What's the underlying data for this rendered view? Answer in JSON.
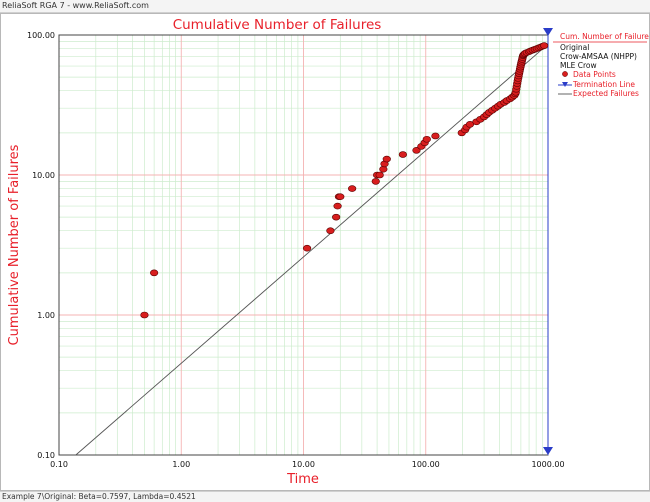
{
  "window": {
    "title": "ReliaSoft RGA 7 - www.ReliaSoft.com",
    "status": "Example 7\\Original: Beta=0.7597, Lambda=0.4521"
  },
  "colors": {
    "title": "#e8202a",
    "point": "#d81e1e",
    "point_edge": "#5a0000",
    "line": "#555555",
    "termination": "#2a3cc8",
    "major_grid": "#f4b3b3",
    "minor_grid": "#cdeccd"
  },
  "legend": {
    "header": "Cum. Number of Failures",
    "lines": [
      "Original",
      "Crow-AMSAA (NHPP)",
      "MLE Crow"
    ],
    "entries": [
      "Data Points",
      "Termination Line",
      "Expected Failures"
    ]
  },
  "chart_data": {
    "type": "scatter",
    "title": "Cumulative Number of Failures",
    "xlabel": "Time",
    "ylabel": "Cumulative Number of Failures",
    "xscale": "log",
    "yscale": "log",
    "xlim": [
      0.1,
      1000
    ],
    "ylim": [
      0.1,
      100
    ],
    "x_ticks": [
      "0.10",
      "1.00",
      "10.00",
      "100.00",
      "1000.00"
    ],
    "y_ticks": [
      "0.10",
      "1.00",
      "10.00",
      "100.00"
    ],
    "grid": true,
    "legend_position": "right",
    "termination_time": 1000,
    "model": {
      "name": "Expected Failures",
      "beta": 0.7597,
      "lambda": 0.4521
    },
    "series": [
      {
        "name": "Data Points",
        "x": [
          0.5,
          0.6,
          10.7,
          16.6,
          18.5,
          19.0,
          19.5,
          20.0,
          25.0,
          39.0,
          40.0,
          42.0,
          45.0,
          46.0,
          48.0,
          65.0,
          84.0,
          92.0,
          98.0,
          102.0,
          120.0,
          197.0,
          210.0,
          216.0,
          230.0,
          260.0,
          280.0,
          300.0,
          315.0,
          330.0,
          350.0,
          370.0,
          390.0,
          410.0,
          440.0,
          460.0,
          490.0,
          510.0,
          530.0,
          540.0,
          545.0,
          550.0,
          555.0,
          560.0,
          565.0,
          570.0,
          575.0,
          580.0,
          585.0,
          590.0,
          595.0,
          600.0,
          605.0,
          610.0,
          615.0,
          620.0,
          625.0,
          630.0,
          640.0,
          650.0,
          670.0,
          700.0,
          720.0,
          750.0,
          780.0,
          810.0,
          840.0,
          870.0,
          900.0,
          930.0
        ],
        "y": [
          1,
          2,
          3,
          4,
          5,
          6,
          7,
          7,
          8,
          9,
          10,
          10,
          11,
          12,
          13,
          14,
          15,
          16,
          17,
          18,
          19,
          20,
          21,
          22,
          23,
          24,
          25,
          26,
          27,
          28,
          29,
          30,
          31,
          32,
          33,
          34,
          35,
          36,
          37,
          38,
          39,
          41,
          43,
          45,
          47,
          49,
          51,
          53,
          55,
          57,
          59,
          61,
          63,
          65,
          67,
          69,
          71,
          72,
          73,
          74,
          75,
          76,
          77,
          78,
          79,
          80,
          81,
          82,
          83,
          84
        ]
      }
    ]
  }
}
